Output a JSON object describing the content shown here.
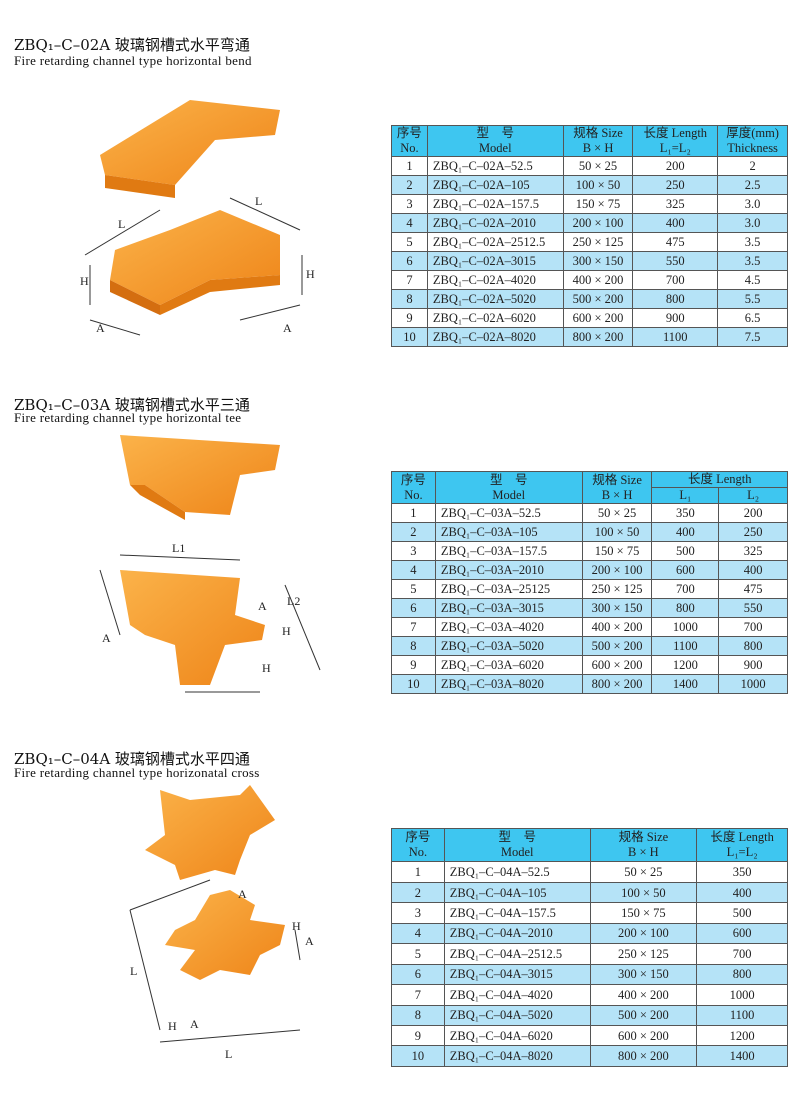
{
  "sections": [
    {
      "title": "ZBQ₁–C–02A 玻璃钢槽式水平弯通",
      "subtitle": "Fire retarding channel type horizontal bend",
      "diagram_labels": [
        "L",
        "L",
        "H",
        "H",
        "A",
        "A"
      ],
      "header_top": [
        "序号",
        "型　号",
        "规格 Size",
        "长度 Length",
        "厚度(mm)"
      ],
      "header_bottom": [
        "No.",
        "Model",
        "B × H",
        "L₁=L₂",
        "Thickness"
      ],
      "rows": [
        [
          "1",
          "ZBQ₁–C–02A–52.5",
          "50 × 25",
          "200",
          "2"
        ],
        [
          "2",
          "ZBQ₁–C–02A–105",
          "100 × 50",
          "250",
          "2.5"
        ],
        [
          "3",
          "ZBQ₁–C–02A–157.5",
          "150 × 75",
          "325",
          "3.0"
        ],
        [
          "4",
          "ZBQ₁–C–02A–2010",
          "200 × 100",
          "400",
          "3.0"
        ],
        [
          "5",
          "ZBQ₁–C–02A–2512.5",
          "250 × 125",
          "475",
          "3.5"
        ],
        [
          "6",
          "ZBQ₁–C–02A–3015",
          "300 × 150",
          "550",
          "3.5"
        ],
        [
          "7",
          "ZBQ₁–C–02A–4020",
          "400 × 200",
          "700",
          "4.5"
        ],
        [
          "8",
          "ZBQ₁–C–02A–5020",
          "500 × 200",
          "800",
          "5.5"
        ],
        [
          "9",
          "ZBQ₁–C–02A–6020",
          "600 × 200",
          "900",
          "6.5"
        ],
        [
          "10",
          "ZBQ₁–C–02A–8020",
          "800 × 200",
          "1100",
          "7.5"
        ]
      ]
    },
    {
      "title": "ZBQ₁–C–03A 玻璃钢槽式水平三通",
      "subtitle": "Fire retarding channel type horizontal tee",
      "diagram_labels": [
        "L1",
        "L2",
        "A",
        "A",
        "H",
        "H"
      ],
      "header_top": [
        "序号",
        "型　号",
        "规格 Size",
        "长度 Length"
      ],
      "header_bottom": [
        "No.",
        "Model",
        "B × H",
        "L₁",
        "L₂"
      ],
      "rows": [
        [
          "1",
          "ZBQ₁–C–03A–52.5",
          "50 × 25",
          "350",
          "200"
        ],
        [
          "2",
          "ZBQ₁–C–03A–105",
          "100 × 50",
          "400",
          "250"
        ],
        [
          "3",
          "ZBQ₁–C–03A–157.5",
          "150 × 75",
          "500",
          "325"
        ],
        [
          "4",
          "ZBQ₁–C–03A–2010",
          "200 × 100",
          "600",
          "400"
        ],
        [
          "5",
          "ZBQ₁–C–03A–25125",
          "250 × 125",
          "700",
          "475"
        ],
        [
          "6",
          "ZBQ₁–C–03A–3015",
          "300 × 150",
          "800",
          "550"
        ],
        [
          "7",
          "ZBQ₁–C–03A–4020",
          "400 × 200",
          "1000",
          "700"
        ],
        [
          "8",
          "ZBQ₁–C–03A–5020",
          "500 × 200",
          "1100",
          "800"
        ],
        [
          "9",
          "ZBQ₁–C–03A–6020",
          "600 × 200",
          "1200",
          "900"
        ],
        [
          "10",
          "ZBQ₁–C–03A–8020",
          "800 × 200",
          "1400",
          "1000"
        ]
      ]
    },
    {
      "title": "ZBQ₁–C–04A 玻璃钢槽式水平四通",
      "subtitle": "Fire retarding channel type horizonatal cross",
      "diagram_labels": [
        "A",
        "A",
        "H",
        "L",
        "H",
        "A",
        "L"
      ],
      "header_top": [
        "序号",
        "型　号",
        "规格 Size",
        "长度 Length"
      ],
      "header_bottom": [
        "No.",
        "Model",
        "B × H",
        "L₁=L₂"
      ],
      "rows": [
        [
          "1",
          "ZBQ₁–C–04A–52.5",
          "50 × 25",
          "350"
        ],
        [
          "2",
          "ZBQ₁–C–04A–105",
          "100 × 50",
          "400"
        ],
        [
          "3",
          "ZBQ₁–C–04A–157.5",
          "150 × 75",
          "500"
        ],
        [
          "4",
          "ZBQ₁–C–04A–2010",
          "200 × 100",
          "600"
        ],
        [
          "5",
          "ZBQ₁–C–04A–2512.5",
          "250 × 125",
          "700"
        ],
        [
          "6",
          "ZBQ₁–C–04A–3015",
          "300 × 150",
          "800"
        ],
        [
          "7",
          "ZBQ₁–C–04A–4020",
          "400 × 200",
          "1000"
        ],
        [
          "8",
          "ZBQ₁–C–04A–5020",
          "500 × 200",
          "1100"
        ],
        [
          "9",
          "ZBQ₁–C–04A–6020",
          "600 × 200",
          "1200"
        ],
        [
          "10",
          "ZBQ₁–C–04A–8020",
          "800 × 200",
          "1400"
        ]
      ]
    }
  ],
  "colors": {
    "header": "#3ec6f0",
    "alt_row": "#b5e3f7",
    "product": "#f59a2a"
  }
}
